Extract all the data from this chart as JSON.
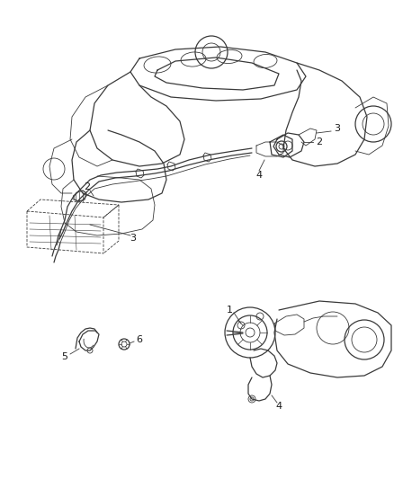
{
  "background_color": "#ffffff",
  "line_color": "#3a3a3a",
  "label_color": "#1a1a1a",
  "figsize": [
    4.38,
    5.33
  ],
  "dpi": 100,
  "top_diagram": {
    "engine_color": "#4a4a4a",
    "tube_color": "#2a2a2a"
  }
}
